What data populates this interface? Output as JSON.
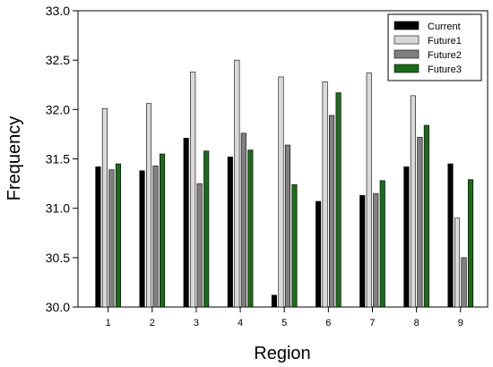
{
  "chart_data": {
    "type": "bar",
    "xlabel": "Region",
    "ylabel": "Frequency",
    "ylim": [
      30.0,
      33.0
    ],
    "yticks": [
      "30.0",
      "30.5",
      "31.0",
      "31.5",
      "32.0",
      "32.5",
      "33.0"
    ],
    "categories": [
      "1",
      "2",
      "3",
      "4",
      "5",
      "6",
      "7",
      "8",
      "9"
    ],
    "legend_position": "top-right",
    "grid": false,
    "series": [
      {
        "name": "Current",
        "color": "#000000",
        "values": [
          31.42,
          31.38,
          31.71,
          31.52,
          30.12,
          31.07,
          31.13,
          31.42,
          31.45
        ]
      },
      {
        "name": "Future1",
        "color": "#d9d9d9",
        "values": [
          32.01,
          32.06,
          32.38,
          32.5,
          32.33,
          32.28,
          32.37,
          32.14,
          30.9
        ]
      },
      {
        "name": "Future2",
        "color": "#808080",
        "values": [
          31.39,
          31.43,
          31.25,
          31.76,
          31.64,
          31.94,
          31.15,
          31.72,
          30.5
        ]
      },
      {
        "name": "Future3",
        "color": "#1a6b1a",
        "values": [
          31.45,
          31.55,
          31.58,
          31.59,
          31.24,
          32.17,
          31.28,
          31.84,
          31.29
        ]
      }
    ]
  }
}
